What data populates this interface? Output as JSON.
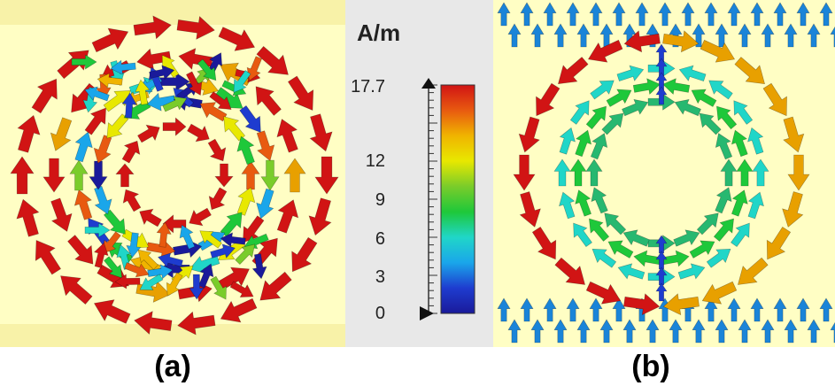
{
  "figure": {
    "captions": {
      "a": "(a)",
      "b": "(b)"
    }
  },
  "legend": {
    "unit": "A/m",
    "max_label": "17.7",
    "tick_labels": [
      "17.7",
      "12",
      "9",
      "6",
      "3",
      "0"
    ],
    "tick_values": [
      17.7,
      12,
      9,
      6,
      3,
      0
    ],
    "colormap": [
      "#d11414",
      "#e85a10",
      "#f0b400",
      "#e8e800",
      "#7acc2a",
      "#1ec83a",
      "#20d6c8",
      "#1aa6ea",
      "#1e3ccf",
      "#1a1a9a"
    ]
  },
  "colors": {
    "background_a": "#fffec4",
    "background_b": "#fffec4",
    "strip": "#f8f2a8",
    "legend_panel": "#e8e8e8"
  }
}
